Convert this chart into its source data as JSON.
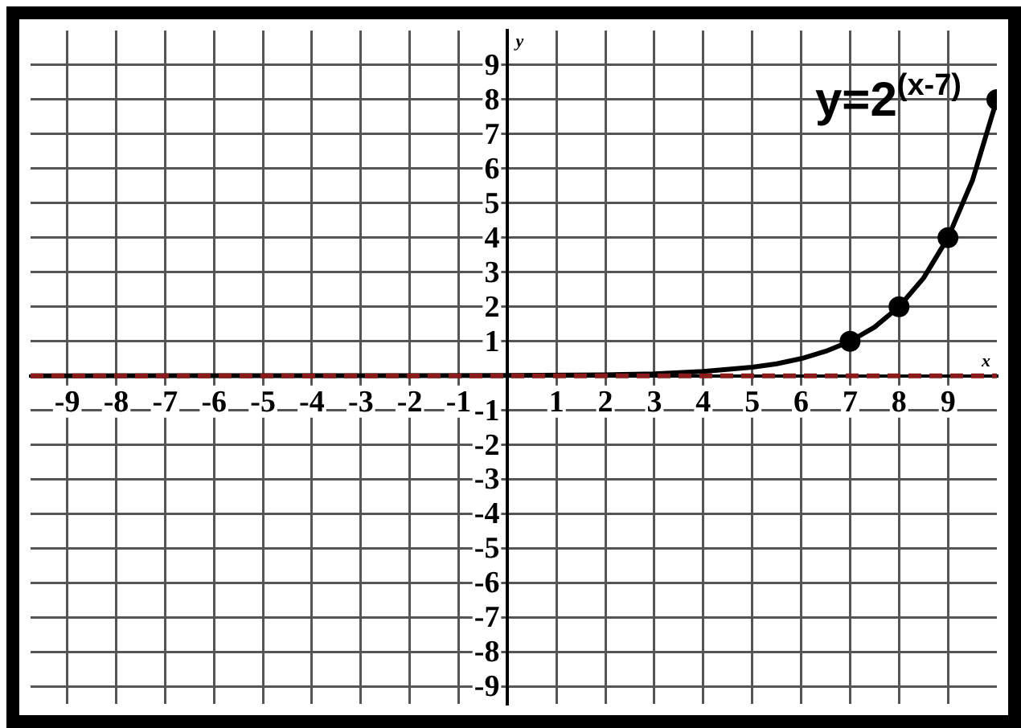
{
  "chart_data": {
    "type": "line",
    "xlabel": "x",
    "ylabel": "y",
    "xlim": [
      -9.75,
      10
    ],
    "ylim": [
      -9.5,
      10
    ],
    "xticks": [
      -9,
      -8,
      -7,
      -6,
      -5,
      -4,
      -3,
      -2,
      -1,
      {
        "value": 0,
        "label": null
      },
      1,
      2,
      3,
      4,
      5,
      6,
      7,
      8,
      9
    ],
    "yticks": [
      -9,
      -8,
      -7,
      -6,
      -5,
      -4,
      -3,
      -2,
      -1,
      {
        "value": 0,
        "label": null
      },
      1,
      2,
      3,
      4,
      5,
      6,
      7,
      8,
      9
    ],
    "grid": true,
    "legend": false,
    "series": [
      {
        "name": "y=2$^{(x-7)}$",
        "color": "#000000",
        "marker": "none",
        "x": [
          -9.75,
          0,
          2,
          3,
          4,
          5,
          5.5,
          6,
          6.5,
          7,
          7.5,
          8,
          8.5,
          9,
          9.5,
          10
        ],
        "values": [
          0,
          0.01,
          0.03,
          0.06,
          0.13,
          0.25,
          0.35,
          0.5,
          0.71,
          1,
          1.41,
          2,
          2.83,
          4,
          5.66,
          8
        ]
      },
      {
        "type": "scatter",
        "color": "#000000",
        "marker": "circle",
        "x": [
          7,
          8,
          9,
          10
        ],
        "values": [
          1,
          2,
          4,
          8
        ]
      }
    ],
    "ref_lines": [
      {
        "axis": "y",
        "value": 0,
        "color": "#8b1a1a",
        "line_style": "dashed"
      }
    ]
  }
}
